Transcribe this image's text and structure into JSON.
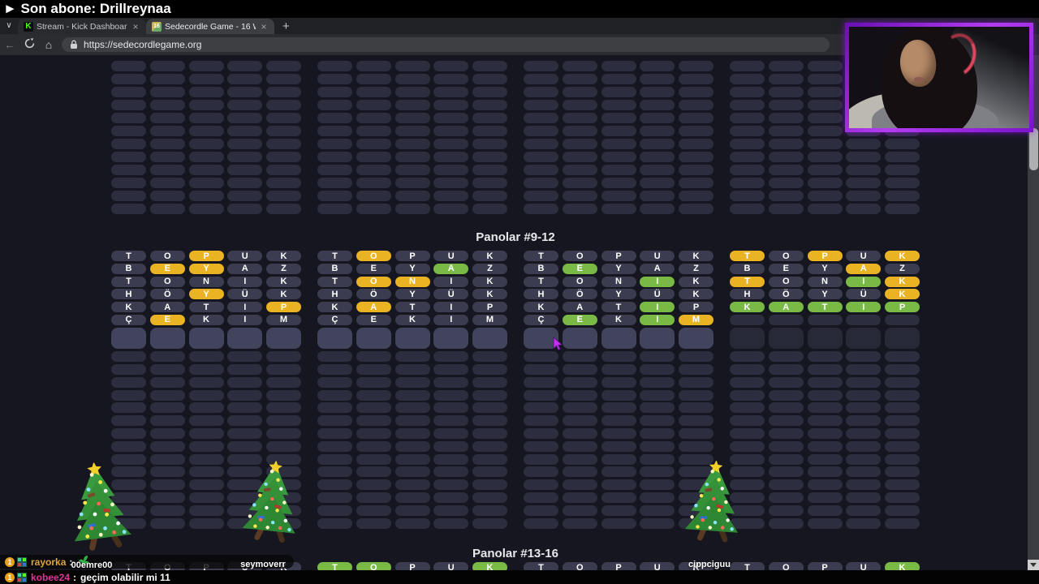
{
  "banner": {
    "text": "► Son abone: Drillreynaa"
  },
  "browser": {
    "tabs": [
      {
        "title": "Stream - Kick Dashboard",
        "favicon": "kick-logo",
        "favicon_text": "K",
        "active": false
      },
      {
        "title": "Sedecordle Game - 16 Words Wor",
        "favicon": "sedecordle-16",
        "favicon_text": "16",
        "active": true
      }
    ],
    "close_label": "×",
    "new_tab_label": "+",
    "back_label": "←",
    "home_label": "⌂",
    "url": "https://sedecordlegame.org"
  },
  "game": {
    "heading_top": "Panolar #9-12",
    "heading_bottom": "Panolar #13-16",
    "top_empty_rows": 12,
    "trailing_empty_rows": 14,
    "mid_boards": [
      {
        "id": 9,
        "input_active": true,
        "rows": [
          [
            "TOPUK",
            "aayaa"
          ],
          [
            "BEYAZ",
            "ayyaa"
          ],
          [
            "TONIK",
            "aaaaa"
          ],
          [
            "HÖYÜK",
            "aayaa"
          ],
          [
            "KATIP",
            "aaaay"
          ],
          [
            "ÇEKIM",
            "ayaaa"
          ]
        ]
      },
      {
        "id": 10,
        "input_active": true,
        "rows": [
          [
            "TOPUK",
            "ayaaa"
          ],
          [
            "BEYAZ",
            "aaaga"
          ],
          [
            "TONIK",
            "ayyaa"
          ],
          [
            "HÖYÜK",
            "aaaaa"
          ],
          [
            "KATIP",
            "ayaaa"
          ],
          [
            "ÇEKIM",
            "aaaaa"
          ]
        ]
      },
      {
        "id": 11,
        "input_active": true,
        "rows": [
          [
            "TOPUK",
            "aaaaa"
          ],
          [
            "BEYAZ",
            "agaaa"
          ],
          [
            "TONIK",
            "aaaga"
          ],
          [
            "HÖYÜK",
            "aaaaa"
          ],
          [
            "KATIP",
            "aaaga"
          ],
          [
            "ÇEKIM",
            "agagy"
          ]
        ]
      },
      {
        "id": 12,
        "input_active": false,
        "rows": [
          [
            "TOPUK",
            "yayay"
          ],
          [
            "BEYAZ",
            "aaaya"
          ],
          [
            "TONIK",
            "yaagy"
          ],
          [
            "HÖYÜK",
            "aaaay"
          ],
          [
            "KATIP",
            "ggggg"
          ],
          [
            "",
            "eeeee"
          ]
        ]
      }
    ],
    "bottom_boards": [
      {
        "id": 13,
        "letters": "TOPUK",
        "states": "aaaaa"
      },
      {
        "id": 14,
        "letters": "TOPUK",
        "states": "ggaag"
      },
      {
        "id": 15,
        "letters": "TOPUK",
        "states": "aaaaa"
      },
      {
        "id": 16,
        "letters": "TOPUK",
        "states": "aaaag"
      }
    ]
  },
  "overlay_trees": [
    {
      "label": "00emre00"
    },
    {
      "label": "seymoverr"
    },
    {
      "label": "cippciguu"
    }
  ],
  "chat": {
    "line1": {
      "badge": "1",
      "user": "rayorka",
      "separator": ":",
      "emote": "plant-emote"
    },
    "line2": {
      "badge": "1",
      "user": "kobee24",
      "separator": ":",
      "message": "geçim olabilir mi 11"
    }
  },
  "colors": {
    "green": "#78ba45",
    "yellow": "#e9b324",
    "absent_tile": "#3b3c4f",
    "empty_tile": "#2c2d3e",
    "active_tile": "#42445e",
    "page_bg": "#15161f",
    "cam_border": "#8a16d8",
    "user1_color": "#e0a43c",
    "user2_color": "#e0359b"
  }
}
